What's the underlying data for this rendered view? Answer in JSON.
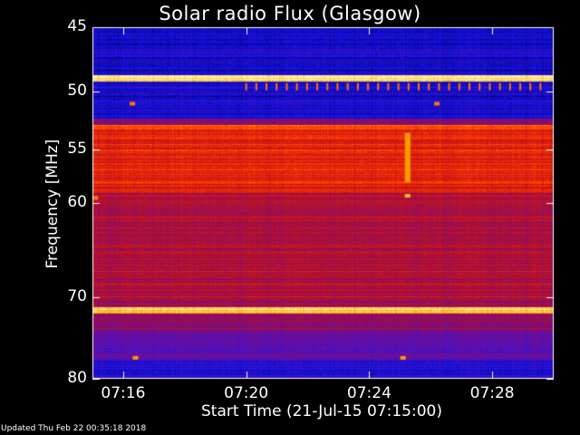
{
  "title": "Solar radio Flux (Glasgow)",
  "updated": "Updated Thu Feb 22 00:35:18 2018",
  "chart_data": {
    "type": "heatmap",
    "title": "Solar radio Flux (Glasgow)",
    "xlabel": "Start Time (21-Jul-15 07:15:00)",
    "ylabel": "Frequency [MHz]",
    "x_unit": "minutes after 07:15:00",
    "xlim": [
      0,
      15
    ],
    "ylim": [
      45,
      80
    ],
    "y_scale": "log",
    "y_inverted": true,
    "x_ticks": [
      {
        "value": 1,
        "label": "07:16"
      },
      {
        "value": 5,
        "label": "07:20"
      },
      {
        "value": 9,
        "label": "07:24"
      },
      {
        "value": 13,
        "label": "07:28"
      }
    ],
    "y_ticks": [
      {
        "value": 45,
        "label": "45"
      },
      {
        "value": 50,
        "label": "50"
      },
      {
        "value": 55,
        "label": "55"
      },
      {
        "value": 60,
        "label": "60"
      },
      {
        "value": 70,
        "label": "70"
      },
      {
        "value": 80,
        "label": "80"
      }
    ],
    "colormap": [
      "#000050",
      "#1010e0",
      "#5a10b4",
      "#8c0c64",
      "#c81414",
      "#ff3c00",
      "#ffa000",
      "#ffffb4"
    ],
    "frequency_bands": [
      {
        "f0": 45.0,
        "f1": 45.4,
        "level": 0.1
      },
      {
        "f0": 45.4,
        "f1": 48.7,
        "level": 0.13
      },
      {
        "f0": 48.7,
        "f1": 49.2,
        "level": 0.95
      },
      {
        "f0": 49.2,
        "f1": 52.3,
        "level": 0.13
      },
      {
        "f0": 52.3,
        "f1": 52.8,
        "level": 0.4
      },
      {
        "f0": 52.8,
        "f1": 53.2,
        "level": 0.75
      },
      {
        "f0": 53.2,
        "f1": 59.0,
        "level": 0.62
      },
      {
        "f0": 59.0,
        "f1": 70.3,
        "level": 0.5
      },
      {
        "f0": 70.3,
        "f1": 71.2,
        "level": 0.45
      },
      {
        "f0": 71.2,
        "f1": 71.9,
        "level": 0.92
      },
      {
        "f0": 71.9,
        "f1": 74.0,
        "level": 0.42
      },
      {
        "f0": 74.0,
        "f1": 77.5,
        "level": 0.3
      },
      {
        "f0": 77.5,
        "f1": 80.0,
        "level": 0.18
      }
    ],
    "features": [
      {
        "kind": "burst",
        "t": 10.25,
        "f0": 53.5,
        "f1": 58.0,
        "level": 0.85
      },
      {
        "kind": "spot",
        "t": 10.25,
        "f": 59.3,
        "level": 0.9
      },
      {
        "kind": "spot",
        "t": 1.3,
        "f": 51.0,
        "level": 0.8
      },
      {
        "kind": "spot",
        "t": 11.2,
        "f": 51.0,
        "level": 0.8
      },
      {
        "kind": "spot",
        "t": 1.4,
        "f": 77.3,
        "level": 0.85
      },
      {
        "kind": "spot",
        "t": 10.1,
        "f": 77.3,
        "level": 0.85
      },
      {
        "kind": "spot",
        "t": 0.1,
        "f": 59.5,
        "level": 0.8
      },
      {
        "kind": "tick_train",
        "t0": 5.0,
        "t1": 14.8,
        "step": 0.33,
        "f": 49.6,
        "level": 0.8
      }
    ]
  }
}
